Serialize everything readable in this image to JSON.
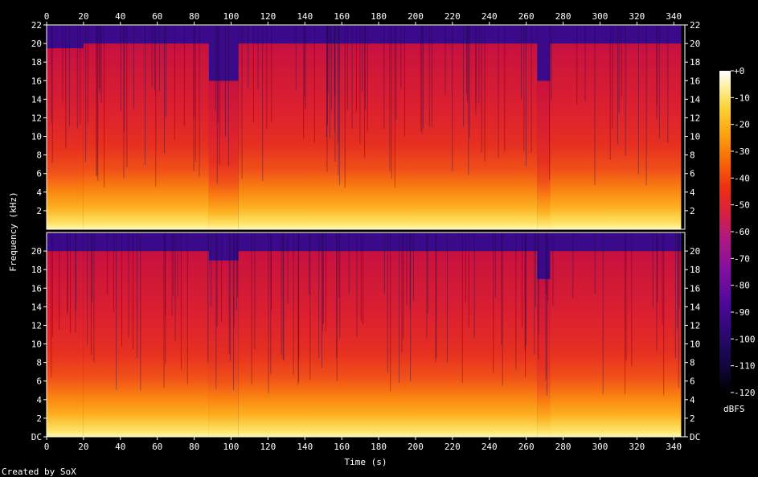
{
  "chart_data": {
    "type": "heatmap",
    "title": "",
    "xlabel": "Time (s)",
    "ylabel": "Frequency (kHz)",
    "footer": "Created by SoX",
    "xlim": [
      0,
      346
    ],
    "ylim": [
      0,
      22
    ],
    "x_ticks": [
      0,
      20,
      40,
      60,
      80,
      100,
      120,
      140,
      160,
      180,
      200,
      220,
      240,
      260,
      280,
      300,
      320,
      340
    ],
    "y_ticks_upper": [
      "2",
      "4",
      "6",
      "8",
      "10",
      "12",
      "14",
      "16",
      "18",
      "20",
      "22"
    ],
    "y_ticks_lower": [
      "DC",
      "2",
      "4",
      "6",
      "8",
      "10",
      "12",
      "14",
      "16",
      "18",
      "20"
    ],
    "channels": 2,
    "colorbar": {
      "unit_label": "dBFS",
      "range": [
        -120,
        0
      ],
      "ticks": [
        "+0",
        "-10",
        "-20",
        "-30",
        "-40",
        "-50",
        "-60",
        "-70",
        "-80",
        "-90",
        "-100",
        "-110",
        "-120"
      ],
      "colors": [
        "#000000",
        "#1a0a4a",
        "#3a0880",
        "#6a0aa0",
        "#9a10a0",
        "#c01878",
        "#e02830",
        "#f04010",
        "#f87008",
        "#fca010",
        "#fdd030",
        "#fef080",
        "#ffffff"
      ]
    },
    "segments_approx": [
      {
        "t0": 0,
        "t1": 20,
        "cutoff_khz_upper": 19.5,
        "cutoff_khz_lower": 20
      },
      {
        "t0": 20,
        "t1": 88,
        "cutoff_khz_upper": 20,
        "cutoff_khz_lower": 20
      },
      {
        "t0": 88,
        "t1": 104,
        "cutoff_khz_upper": 16,
        "cutoff_khz_lower": 19
      },
      {
        "t0": 104,
        "t1": 266,
        "cutoff_khz_upper": 20,
        "cutoff_khz_lower": 20
      },
      {
        "t0": 266,
        "t1": 273,
        "cutoff_khz_upper": 16,
        "cutoff_khz_lower": 17
      },
      {
        "t0": 273,
        "t1": 344,
        "cutoff_khz_upper": 20,
        "cutoff_khz_lower": 20
      }
    ]
  }
}
